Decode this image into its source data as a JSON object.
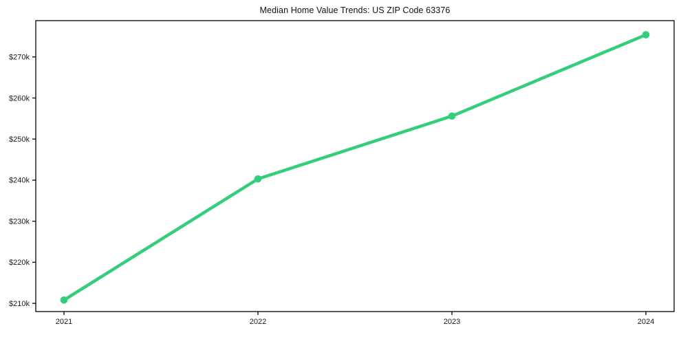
{
  "page": {
    "background_color": "#ffffff"
  },
  "chart_data": {
    "type": "line",
    "title": "Median Home Value Trends: US ZIP Code 63376",
    "series": [
      {
        "name": "Median Home Value",
        "x": [
          "2021",
          "2022",
          "2023",
          "2024"
        ],
        "values": [
          210800,
          240300,
          255600,
          275400
        ]
      }
    ],
    "xlabel": "",
    "ylabel": "",
    "x_tick_labels": [
      "2021",
      "2022",
      "2023",
      "2024"
    ],
    "y_ticks": [
      {
        "value": 210000,
        "label": "$210k"
      },
      {
        "value": 220000,
        "label": "$220k"
      },
      {
        "value": 230000,
        "label": "$230k"
      },
      {
        "value": 240000,
        "label": "$240k"
      },
      {
        "value": 250000,
        "label": "$250k"
      },
      {
        "value": 260000,
        "label": "$260k"
      },
      {
        "value": 270000,
        "label": "$270k"
      }
    ],
    "ylim": [
      208000,
      278840
    ],
    "grid": false,
    "legend_position": "none",
    "line_color": "#34ce7b",
    "marker_color": "#34ce7b",
    "axis_color": "#000000",
    "tick_label_color": "#1a1a1a",
    "title_color": "#111111"
  }
}
